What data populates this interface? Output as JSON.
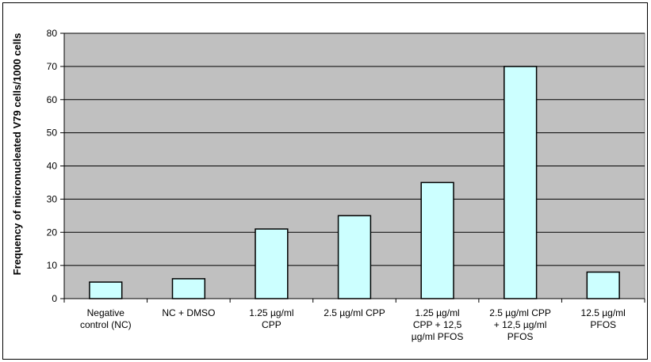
{
  "chart_data": {
    "type": "bar",
    "title": "",
    "xlabel": "",
    "ylabel": "Frequency of micronucleated V79 cells/1000 cells",
    "ylim": [
      0,
      80
    ],
    "yticks": [
      0,
      10,
      20,
      30,
      40,
      50,
      60,
      70,
      80
    ],
    "grid": true,
    "legend": "none",
    "categories": [
      [
        "Negative",
        "control (NC)"
      ],
      [
        "NC + DMSO"
      ],
      [
        "1.25 µg/ml",
        "CPP"
      ],
      [
        "2.5 µg/ml CPP"
      ],
      [
        "1.25 µg/ml",
        "CPP + 12,5",
        "µg/ml PFOS"
      ],
      [
        "2.5 µg/ml CPP",
        "+ 12,5 µg/ml",
        "PFOS"
      ],
      [
        "12.5 µg/ml",
        "PFOS"
      ]
    ],
    "values": [
      5,
      6,
      21,
      25,
      35,
      70,
      8
    ],
    "colors": {
      "plot_area": "#c0c0c0",
      "bar_fill": "#ccffff",
      "bar_stroke": "#000000",
      "gridline": "#000000"
    }
  }
}
